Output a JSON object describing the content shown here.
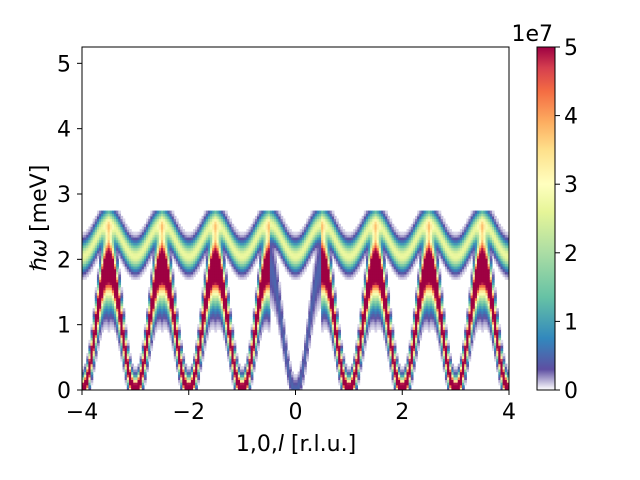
{
  "chart_data": {
    "type": "heatmap",
    "title": "",
    "xlabel_prefix": "1,0,",
    "xlabel_italic": "l",
    "xlabel_suffix": " [r.l.u.]",
    "ylabel_hbar": "ℏ",
    "ylabel_omega": "ω",
    "ylabel_units": " [meV]",
    "xlim": [
      -4,
      4
    ],
    "ylim": [
      0,
      5.25
    ],
    "xticks": [
      -4,
      -2,
      0,
      2,
      4
    ],
    "xtick_labels": [
      "−4",
      "−2",
      "0",
      "2",
      "4"
    ],
    "yticks": [
      0,
      1,
      2,
      3,
      4,
      5
    ],
    "ytick_labels": [
      "0",
      "1",
      "2",
      "3",
      "4",
      "5"
    ],
    "colorbar": {
      "range": [
        0,
        50000000
      ],
      "ticks": [
        0,
        1,
        2,
        3,
        4,
        5
      ],
      "tick_labels": [
        "0",
        "1",
        "2",
        "3",
        "4",
        "5"
      ],
      "multiplier": "1e7",
      "colormap": "Spectral_r"
    },
    "bands": [
      {
        "name": "upper band",
        "min_meV": 2.05,
        "max_meV": 2.55,
        "minima_at_l": [
          -3,
          -2,
          -1,
          0,
          1,
          2,
          3
        ],
        "peak_intensity": 30000000
      },
      {
        "name": "lower band",
        "min_meV": 0.0,
        "max_meV": 1.9,
        "minima_at_l": [
          -4,
          -3,
          -2,
          -1,
          0,
          1,
          2,
          3,
          4
        ],
        "peak_intensity": 50000000
      }
    ]
  }
}
